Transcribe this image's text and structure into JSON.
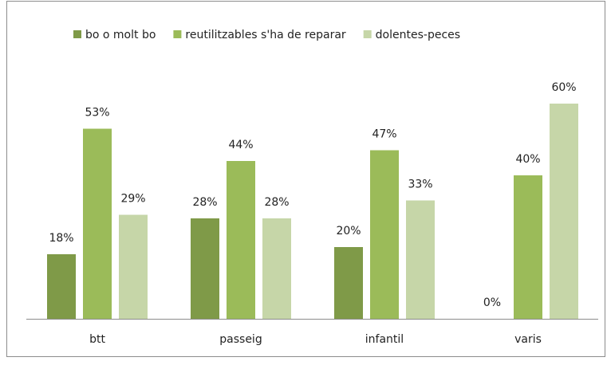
{
  "chart_data": {
    "type": "bar",
    "categories": [
      "btt",
      "passeig",
      "infantil",
      "varis"
    ],
    "series": [
      {
        "name": "bo o molt bo",
        "color": "#7f9a48",
        "values": [
          18,
          28,
          20,
          0
        ],
        "value_labels": [
          "18%",
          "28%",
          "20%",
          "0%"
        ]
      },
      {
        "name": "reutilitzables s'ha de reparar",
        "color": "#9bbb59",
        "values": [
          53,
          44,
          47,
          40
        ],
        "value_labels": [
          "53%",
          "44%",
          "47%",
          "40%"
        ]
      },
      {
        "name": "dolentes-peces",
        "color": "#c6d6a8",
        "values": [
          29,
          28,
          33,
          60
        ],
        "value_labels": [
          "29%",
          "28%",
          "33%",
          "60%"
        ]
      }
    ],
    "legend": "top"
  }
}
